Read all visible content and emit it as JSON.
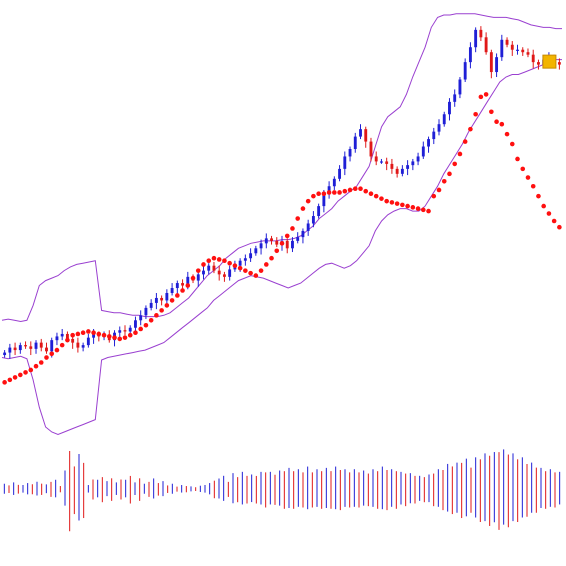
{
  "chart_data": [
    {
      "type": "candlestick",
      "title": "",
      "xlabel": "",
      "ylabel": "",
      "grid": false,
      "legend": "none",
      "colors": {
        "up_candle": "#1f1fd6",
        "down_candle": "#e01818",
        "parabolic_sar": "#ff1010",
        "bollinger_bands": "#9a40d0",
        "marker": "#f2b400"
      },
      "series": [
        {
          "name": "",
          "kind": "candles",
          "close": [
            314,
            318,
            316,
            320,
            319,
            317,
            322,
            318,
            315,
            324,
            327,
            329,
            325,
            322,
            318,
            320,
            326,
            329,
            327,
            328,
            324,
            330,
            332,
            331,
            334,
            340,
            344,
            350,
            354,
            358,
            356,
            362,
            366,
            370,
            368,
            375,
            372,
            377,
            380,
            384,
            380,
            377,
            375,
            381,
            384,
            388,
            390,
            394,
            398,
            402,
            406,
            404,
            401,
            404,
            398,
            404,
            407,
            412,
            418,
            424,
            432,
            442,
            448,
            454,
            462,
            472,
            478,
            488,
            494,
            484,
            472,
            468,
            468,
            466,
            462,
            458,
            462,
            465,
            468,
            472,
            480,
            486,
            492,
            498,
            506,
            516,
            522,
            534,
            548,
            560,
            574,
            568,
            556,
            540,
            552,
            566,
            562,
            558,
            558,
            556,
            554,
            548,
            546,
            550,
            552,
            548,
            546
          ]
        },
        {
          "name": "",
          "kind": "parabolic_sar",
          "values": [
            290,
            292,
            294,
            296,
            298,
            300,
            303,
            306,
            310,
            313,
            316,
            320,
            324,
            328,
            329,
            330,
            331,
            330,
            329,
            328,
            327,
            326,
            325,
            326,
            328,
            330,
            333,
            336,
            340,
            344,
            348,
            352,
            356,
            360,
            364,
            368,
            374,
            380,
            385,
            388,
            390,
            389,
            388,
            386,
            384,
            382,
            380,
            378,
            376,
            380,
            385,
            390,
            396,
            402,
            408,
            414,
            422,
            430,
            436,
            440,
            442,
            442,
            443,
            443,
            443,
            444,
            445,
            446,
            446,
            444,
            442,
            440,
            438,
            436,
            435,
            434,
            433,
            432,
            431,
            430,
            429,
            428,
            440,
            445,
            452,
            458,
            466,
            474,
            484,
            494,
            506,
            520,
            522,
            508,
            500,
            498,
            490,
            482,
            470,
            462,
            455,
            448,
            440,
            432,
            426,
            420,
            415
          ]
        },
        {
          "name": "",
          "kind": "bollinger_upper",
          "values": [
            340,
            341,
            340,
            339,
            340,
            352,
            368,
            372,
            374,
            376,
            380,
            383,
            385,
            386,
            387,
            388,
            348,
            347,
            346,
            346,
            345,
            344,
            344,
            343,
            343,
            343,
            344,
            346,
            350,
            354,
            358,
            364,
            370,
            376,
            380,
            384,
            390,
            394,
            398,
            400,
            402,
            403,
            404,
            404,
            404,
            405,
            405,
            406,
            408,
            412,
            416,
            422,
            426,
            430,
            436,
            440,
            444,
            448,
            456,
            464,
            480,
            496,
            504,
            508,
            512,
            522,
            536,
            548,
            560,
            576,
            584,
            586,
            586,
            587,
            587,
            587,
            587,
            586,
            585,
            584,
            584,
            584,
            583,
            582,
            580,
            578,
            577,
            576,
            576,
            575,
            575
          ]
        },
        {
          "name": "",
          "kind": "bollinger_lower",
          "values": [
            310,
            309,
            310,
            311,
            309,
            292,
            270,
            254,
            250,
            248,
            250,
            252,
            254,
            256,
            258,
            260,
            308,
            310,
            311,
            312,
            313,
            314,
            315,
            316,
            318,
            320,
            322,
            326,
            330,
            334,
            338,
            342,
            346,
            350,
            356,
            360,
            364,
            368,
            372,
            374,
            376,
            375,
            374,
            372,
            370,
            368,
            366,
            368,
            370,
            374,
            378,
            382,
            385,
            386,
            384,
            382,
            384,
            388,
            394,
            400,
            412,
            420,
            425,
            428,
            430,
            430,
            428,
            428,
            432,
            440,
            448,
            458,
            466,
            474,
            482,
            492,
            500,
            508,
            516,
            524,
            532,
            536,
            538,
            538,
            540,
            542,
            544,
            546,
            548,
            550,
            550
          ]
        }
      ],
      "ylim": [
        250,
        590
      ]
    },
    {
      "type": "bar",
      "title": "",
      "xlabel": "",
      "ylabel": "",
      "grid": false,
      "legend": "none",
      "colors": {
        "positive": "#1f1fd6",
        "negative": "#e01818"
      },
      "series": [
        {
          "name": "",
          "values": [
            0.8,
            -0.6,
            1.0,
            -0.7,
            0.6,
            0.9,
            -0.8,
            1.1,
            -0.9,
            0.7,
            -1.2,
            1.4,
            -0.5,
            2.8,
            -6.4,
            -3.8,
            5.3,
            -4.4,
            0.6,
            -1.6,
            1.4,
            -2.0,
            1.2,
            -1.8,
            1.0,
            -1.6,
            1.4,
            -2.2,
            1.0,
            -1.8,
            0.8,
            -1.2,
            1.6,
            -1.0,
            1.2,
            -0.6,
            0.8,
            -0.4,
            0.6,
            -0.5,
            0.4,
            -0.3,
            0.5,
            0.6,
            0.9,
            -1.4,
            1.6,
            2.0,
            -1.2,
            2.4,
            -2.0,
            2.6,
            -2.2,
            2.2,
            -2.2,
            2.6,
            -2.8,
            2.6,
            -2.4,
            2.8,
            -3.0,
            3.2,
            -3.0,
            3.0,
            -2.8,
            3.4,
            -2.8,
            3.0,
            -3.0,
            3.2,
            -3.0,
            3.4,
            -3.2,
            3.0,
            -2.8,
            3.0,
            -2.8,
            2.8,
            -2.6,
            3.0,
            -3.0,
            3.4,
            -3.2,
            3.0,
            -3.0,
            2.6,
            -2.6,
            2.4,
            -2.2,
            2.0,
            -2.0,
            2.2,
            -2.6,
            3.0,
            -3.2,
            3.8,
            -3.8,
            4.0,
            -4.4,
            4.6,
            -3.6,
            4.8,
            -5.0,
            5.4,
            -5.6,
            5.6,
            -6.2,
            6.0,
            -5.8,
            5.4,
            -5.0,
            4.8,
            -4.2,
            4.0,
            -3.6,
            3.2,
            -3.0,
            3.0,
            -2.8,
            2.6
          ]
        }
      ]
    }
  ]
}
